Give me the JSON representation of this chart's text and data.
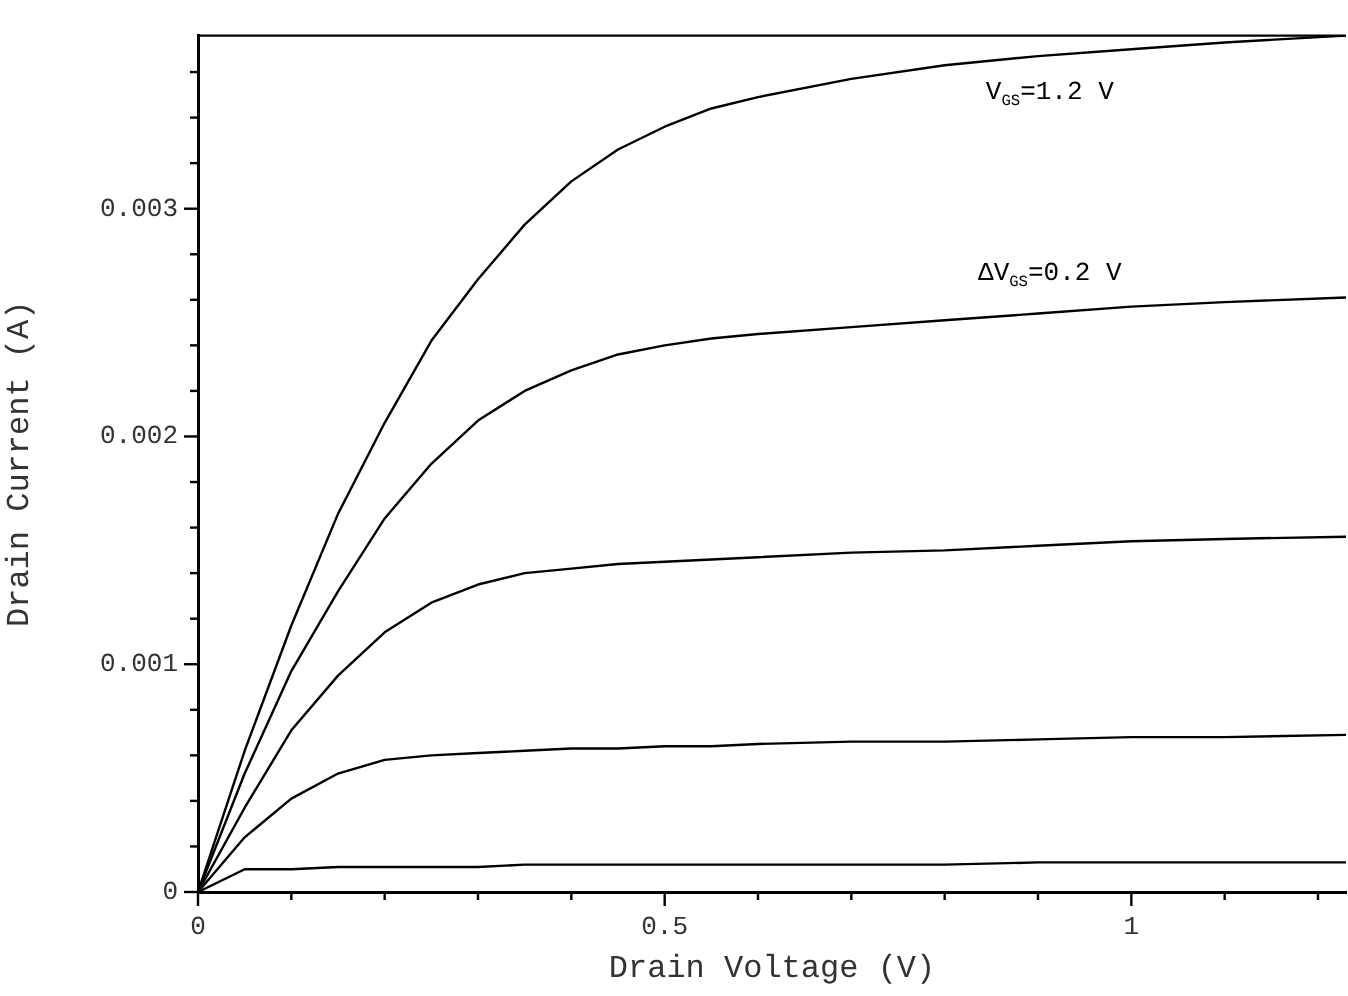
{
  "chart_data": {
    "type": "line",
    "xlabel": "Drain Voltage (V)",
    "ylabel": "Drain Current (A)",
    "x": [
      0,
      0.05,
      0.1,
      0.15,
      0.2,
      0.25,
      0.3,
      0.35,
      0.4,
      0.45,
      0.5,
      0.55,
      0.6,
      0.7,
      0.8,
      0.9,
      1.0,
      1.1,
      1.23
    ],
    "series": [
      {
        "color": "#000000",
        "values": [
          0,
          0.00062,
          0.00117,
          0.00166,
          0.00206,
          0.00242,
          0.00269,
          0.00293,
          0.00312,
          0.00326,
          0.00336,
          0.00344,
          0.00349,
          0.00357,
          0.00363,
          0.00367,
          0.0037,
          0.00373,
          0.00376
        ]
      },
      {
        "color": "#000000",
        "values": [
          0,
          0.00052,
          0.00097,
          0.00132,
          0.00164,
          0.00188,
          0.00207,
          0.0022,
          0.00229,
          0.00236,
          0.0024,
          0.00243,
          0.00245,
          0.00248,
          0.00251,
          0.00254,
          0.00257,
          0.00259,
          0.00261
        ]
      },
      {
        "color": "#000000",
        "values": [
          0,
          0.00037,
          0.00071,
          0.00095,
          0.00114,
          0.00127,
          0.00135,
          0.0014,
          0.00142,
          0.00144,
          0.00145,
          0.00146,
          0.00147,
          0.00149,
          0.0015,
          0.00152,
          0.00154,
          0.00155,
          0.00156
        ]
      },
      {
        "color": "#000000",
        "values": [
          0,
          0.00024,
          0.00041,
          0.00052,
          0.00058,
          0.0006,
          0.00061,
          0.00062,
          0.00063,
          0.00063,
          0.00064,
          0.00064,
          0.00065,
          0.00066,
          0.00066,
          0.00067,
          0.00068,
          0.00068,
          0.00069
        ]
      },
      {
        "color": "#000000",
        "values": [
          0,
          0.0001,
          0.0001,
          0.00011,
          0.00011,
          0.00011,
          0.00011,
          0.00012,
          0.00012,
          0.00012,
          0.00012,
          0.00012,
          0.00012,
          0.00012,
          0.00012,
          0.00013,
          0.00013,
          0.00013,
          0.00013
        ]
      }
    ],
    "xlim": [
      0,
      1.23
    ],
    "ylim": [
      0,
      0.00376
    ],
    "xticks": [
      0,
      {
        "value": 0.1,
        "label": null
      },
      {
        "value": 0.2,
        "label": null
      },
      {
        "value": 0.3,
        "label": null
      },
      {
        "value": 0.4,
        "label": null
      },
      0.5,
      {
        "value": 0.6,
        "label": null
      },
      {
        "value": 0.7,
        "label": null
      },
      {
        "value": 0.8,
        "label": null
      },
      {
        "value": 0.9,
        "label": null
      },
      1,
      {
        "value": 1.1,
        "label": null
      },
      {
        "value": 1.2,
        "label": null
      }
    ],
    "yticks": [
      0,
      {
        "value": 0.0002,
        "label": null
      },
      {
        "value": 0.0004,
        "label": null
      },
      {
        "value": 0.0006,
        "label": null
      },
      {
        "value": 0.0008,
        "label": null
      },
      0.001,
      {
        "value": 0.0012,
        "label": null
      },
      {
        "value": 0.0014,
        "label": null
      },
      {
        "value": 0.0016,
        "label": null
      },
      {
        "value": 0.0018,
        "label": null
      },
      0.002,
      {
        "value": 0.0022,
        "label": null
      },
      {
        "value": 0.0024,
        "label": null
      },
      {
        "value": 0.0026,
        "label": null
      },
      {
        "value": 0.0028,
        "label": null
      },
      0.003,
      {
        "value": 0.0032,
        "label": null
      },
      {
        "value": 0.0034,
        "label": null
      },
      {
        "value": 0.0036,
        "label": null
      }
    ],
    "annotations": [
      "V$_{GS}$=1.2 V",
      "ΔV$_{GS}$=0.2 V"
    ],
    "grid": false,
    "legend": false,
    "marker": "none",
    "line_style": "solid"
  }
}
